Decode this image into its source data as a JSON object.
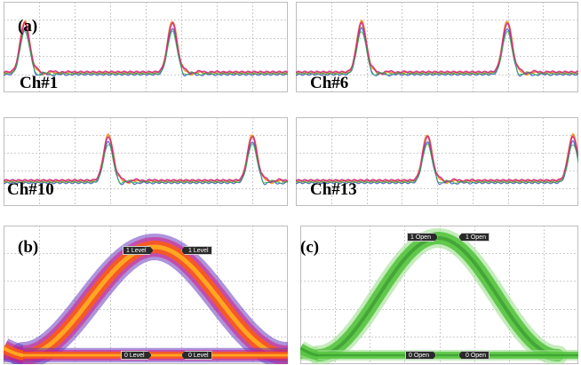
{
  "panel_a": {
    "letter": "(a)",
    "channels": [
      {
        "label": "Ch#1"
      },
      {
        "label": "Ch#6"
      },
      {
        "label": "Ch#10"
      },
      {
        "label": "Ch#13"
      }
    ]
  },
  "panel_b": {
    "letter": "(b)",
    "markers": {
      "top_left": "1 Level",
      "top_right": "1 Level",
      "bottom_left": "0 Level",
      "bottom_right": "0 Level"
    }
  },
  "panel_c": {
    "letter": "(c)",
    "markers": {
      "top_left": "1 Open",
      "top_right": "1 Open",
      "bottom_left": "0 Open",
      "bottom_right": "0 Open"
    }
  },
  "colors": {
    "trace_orange": "#f08a1c",
    "trace_magenta": "#d0208a",
    "trace_blue": "#3050d0",
    "trace_green": "#2fb04a",
    "eye_hot": "#ff5a10",
    "eye_warm": "#ffb020",
    "eye_cool": "#6a3cc0",
    "eye_green": "#55c43f",
    "grid": "#bdbdbd"
  }
}
